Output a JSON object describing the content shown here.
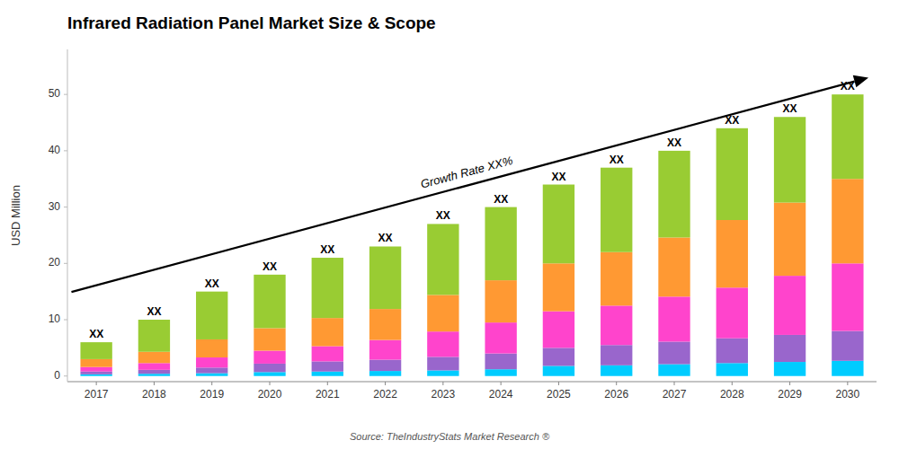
{
  "chart_data": {
    "type": "bar",
    "stacked": true,
    "grid": false,
    "title": "Infrared Radiation Panel Market Size & Scope",
    "ylabel": "USD Million",
    "source": "Source: TheIndustryStats Market Research ®",
    "annotation": "Growth Rate XX%",
    "categories": [
      "2017",
      "2018",
      "2019",
      "2020",
      "2021",
      "2022",
      "2023",
      "2024",
      "2025",
      "2026",
      "2027",
      "2028",
      "2029",
      "2030"
    ],
    "series": [
      {
        "color": "#00CCFF",
        "values": [
          0.3,
          0.4,
          0.5,
          0.7,
          0.8,
          0.9,
          1.0,
          1.2,
          1.8,
          1.9,
          2.1,
          2.3,
          2.5,
          2.7
        ]
      },
      {
        "color": "#9966CC",
        "values": [
          0.5,
          0.7,
          1.0,
          1.5,
          1.8,
          2.0,
          2.4,
          2.8,
          3.2,
          3.6,
          4.0,
          4.4,
          4.8,
          5.3
        ]
      },
      {
        "color": "#FF44CC",
        "values": [
          0.8,
          1.2,
          1.8,
          2.3,
          2.7,
          3.5,
          4.5,
          5.5,
          6.5,
          7.0,
          8.0,
          9.0,
          10.5,
          12.0
        ]
      },
      {
        "color": "#FF9933",
        "values": [
          1.4,
          2.0,
          3.2,
          4.0,
          5.0,
          5.5,
          6.5,
          7.5,
          8.5,
          9.5,
          10.5,
          12.0,
          13.0,
          15.0
        ]
      },
      {
        "color": "#99CC33",
        "values": [
          3.0,
          5.7,
          8.5,
          9.5,
          10.7,
          11.1,
          12.6,
          13.0,
          14.0,
          15.0,
          15.4,
          16.3,
          15.2,
          15.0
        ]
      }
    ],
    "bar_labels": [
      "XX",
      "XX",
      "XX",
      "XX",
      "XX",
      "XX",
      "XX",
      "XX",
      "XX",
      "XX",
      "XX",
      "XX",
      "XX",
      "XX"
    ],
    "ylim": [
      -1,
      58
    ],
    "yticks": [
      0,
      10,
      20,
      30,
      40,
      50
    ]
  }
}
